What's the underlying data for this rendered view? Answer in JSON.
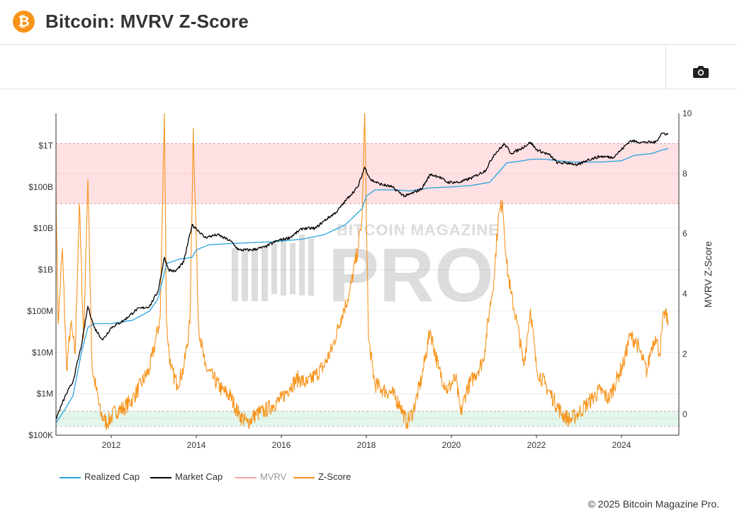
{
  "header": {
    "title": "Bitcoin: MVRV Z-Score",
    "logo_glyph": "₿",
    "logo_color": "#f7931a"
  },
  "toolbar": {
    "camera_icon": "camera-icon"
  },
  "watermark": {
    "top": "BITCOIN MAGAZINE",
    "main": "PRO"
  },
  "footer": {
    "copyright": "© 2025 Bitcoin Magazine Pro."
  },
  "legend": [
    {
      "label": "Realized Cap",
      "color": "#29a3dd",
      "visible": true
    },
    {
      "label": "Market Cap",
      "color": "#000000",
      "visible": true
    },
    {
      "label": "MVRV",
      "color": "#f4a6a6",
      "visible": false
    },
    {
      "label": "Z-Score",
      "color": "#f7931a",
      "visible": true
    }
  ],
  "chart_data": {
    "type": "line",
    "title": "Bitcoin: MVRV Z-Score",
    "x_ticks": [
      "2012",
      "2014",
      "2016",
      "2018",
      "2020",
      "2022",
      "2024"
    ],
    "y_left": {
      "scale": "log",
      "range": [
        100000,
        6000000000000
      ],
      "tick_labels": [
        "$100K",
        "$1M",
        "$10M",
        "$100M",
        "$1B",
        "$10B",
        "$100B",
        "$1T"
      ],
      "tick_values": [
        100000.0,
        1000000.0,
        10000000.0,
        100000000.0,
        1000000000.0,
        10000000000.0,
        100000000000.0,
        1000000000000.0
      ]
    },
    "y_right": {
      "label": "MVRV Z-Score",
      "range": [
        -0.7,
        10
      ],
      "tick_labels": [
        "0",
        "2",
        "4",
        "6",
        "8",
        "10"
      ],
      "tick_values": [
        0,
        2,
        4,
        6,
        8,
        10
      ]
    },
    "bands": [
      {
        "name": "overvalued",
        "from": 7,
        "to": 9,
        "color": "#ffe0e3",
        "mid": 8
      },
      {
        "name": "undervalued",
        "from": -0.4,
        "to": 0.1,
        "color": "#e3f6ec",
        "mid": -0.15
      }
    ],
    "series": [
      {
        "name": "Market Cap",
        "color": "#000000",
        "axis": "left",
        "x": [
          2010.7,
          2010.9,
          2011.1,
          2011.3,
          2011.45,
          2011.6,
          2011.8,
          2012.0,
          2012.3,
          2012.6,
          2012.9,
          2013.1,
          2013.25,
          2013.35,
          2013.5,
          2013.7,
          2013.9,
          2014.0,
          2014.2,
          2014.5,
          2014.8,
          2015.0,
          2015.3,
          2015.6,
          2015.9,
          2016.2,
          2016.5,
          2016.8,
          2017.0,
          2017.3,
          2017.6,
          2017.8,
          2017.96,
          2018.1,
          2018.3,
          2018.6,
          2018.9,
          2019.0,
          2019.3,
          2019.5,
          2019.7,
          2019.9,
          2020.2,
          2020.5,
          2020.8,
          2021.0,
          2021.25,
          2021.4,
          2021.6,
          2021.86,
          2022.0,
          2022.3,
          2022.5,
          2022.8,
          2022.95,
          2023.2,
          2023.5,
          2023.8,
          2024.0,
          2024.2,
          2024.5,
          2024.8,
          2024.95,
          2025.1
        ],
        "values": [
          250000.0,
          800000.0,
          2000000.0,
          15000000.0,
          130000000.0,
          40000000.0,
          20000000.0,
          40000000.0,
          60000000.0,
          110000000.0,
          130000000.0,
          300000000.0,
          2000000000.0,
          1000000000.0,
          900000000.0,
          1500000000.0,
          12000000000.0,
          10000000000.0,
          6000000000.0,
          7000000000.0,
          5000000000.0,
          3000000000.0,
          3000000000.0,
          3500000000.0,
          5000000000.0,
          6000000000.0,
          10000000000.0,
          10000000000.0,
          15000000000.0,
          25000000000.0,
          60000000000.0,
          100000000000.0,
          300000000000.0,
          150000000000.0,
          120000000000.0,
          100000000000.0,
          60000000000.0,
          65000000000.0,
          90000000000.0,
          200000000000.0,
          180000000000.0,
          130000000000.0,
          130000000000.0,
          170000000000.0,
          250000000000.0,
          600000000000.0,
          1100000000000.0,
          650000000000.0,
          800000000000.0,
          1200000000000.0,
          800000000000.0,
          600000000000.0,
          380000000000.0,
          380000000000.0,
          330000000000.0,
          450000000000.0,
          550000000000.0,
          520000000000.0,
          800000000000.0,
          1300000000000.0,
          1200000000000.0,
          1200000000000.0,
          2000000000000.0,
          1900000000000.0
        ]
      },
      {
        "name": "Realized Cap",
        "color": "#29a3dd",
        "axis": "left",
        "x": [
          2010.7,
          2010.9,
          2011.1,
          2011.3,
          2011.45,
          2011.6,
          2011.8,
          2012.0,
          2012.5,
          2012.9,
          2013.1,
          2013.3,
          2013.6,
          2013.9,
          2014.0,
          2014.3,
          2014.8,
          2015.3,
          2015.9,
          2016.5,
          2017.0,
          2017.5,
          2017.9,
          2018.0,
          2018.2,
          2018.7,
          2019.0,
          2019.5,
          2020.0,
          2020.5,
          2020.9,
          2021.1,
          2021.3,
          2021.6,
          2021.9,
          2022.2,
          2022.5,
          2022.9,
          2023.5,
          2024.0,
          2024.3,
          2024.7,
          2024.95,
          2025.1
        ],
        "values": [
          200000.0,
          400000.0,
          900000.0,
          10000000.0,
          40000000.0,
          50000000.0,
          50000000.0,
          50000000.0,
          60000000.0,
          100000000.0,
          200000000.0,
          1400000000.0,
          1800000000.0,
          2000000000.0,
          3000000000.0,
          4000000000.0,
          4300000000.0,
          4500000000.0,
          4800000000.0,
          5500000000.0,
          7000000000.0,
          12000000000.0,
          30000000000.0,
          60000000000.0,
          85000000000.0,
          85000000000.0,
          80000000000.0,
          95000000000.0,
          100000000000.0,
          110000000000.0,
          130000000000.0,
          220000000000.0,
          380000000000.0,
          420000000000.0,
          470000000000.0,
          470000000000.0,
          430000000000.0,
          400000000000.0,
          400000000000.0,
          430000000000.0,
          580000000000.0,
          640000000000.0,
          780000000000.0,
          850000000000.0
        ]
      },
      {
        "name": "Z-Score",
        "color": "#f7931a",
        "axis": "right",
        "x": [
          2010.7,
          2010.75,
          2010.85,
          2010.95,
          2011.05,
          2011.15,
          2011.25,
          2011.35,
          2011.45,
          2011.55,
          2011.65,
          2011.75,
          2011.9,
          2012.1,
          2012.3,
          2012.5,
          2012.7,
          2012.9,
          2013.05,
          2013.15,
          2013.25,
          2013.3,
          2013.4,
          2013.55,
          2013.7,
          2013.85,
          2013.93,
          2014.05,
          2014.2,
          2014.4,
          2014.6,
          2014.8,
          2015.0,
          2015.2,
          2015.4,
          2015.6,
          2015.8,
          2016.0,
          2016.2,
          2016.4,
          2016.6,
          2016.8,
          2017.0,
          2017.2,
          2017.4,
          2017.6,
          2017.8,
          2017.9,
          2017.96,
          2018.05,
          2018.2,
          2018.4,
          2018.6,
          2018.8,
          2018.95,
          2019.1,
          2019.3,
          2019.5,
          2019.7,
          2019.9,
          2020.1,
          2020.22,
          2020.35,
          2020.55,
          2020.75,
          2020.9,
          2021.0,
          2021.1,
          2021.2,
          2021.3,
          2021.4,
          2021.55,
          2021.7,
          2021.86,
          2022.0,
          2022.2,
          2022.4,
          2022.6,
          2022.8,
          2022.95,
          2023.1,
          2023.3,
          2023.5,
          2023.7,
          2023.9,
          2024.05,
          2024.2,
          2024.35,
          2024.5,
          2024.6,
          2024.7,
          2024.8,
          2024.9,
          2025.0,
          2025.1
        ],
        "values": [
          7.5,
          3,
          5.5,
          1.5,
          3,
          2,
          7,
          2.5,
          7.8,
          1.5,
          0.8,
          0,
          -0.3,
          0.1,
          0.2,
          0.5,
          1,
          1.5,
          2.5,
          3.2,
          10,
          3,
          1.5,
          1,
          1.5,
          3,
          9.5,
          3,
          1.6,
          1.2,
          0.8,
          0.6,
          0,
          -0.3,
          0,
          0.1,
          0.3,
          0.5,
          0.9,
          1.2,
          1.0,
          1.3,
          1.6,
          2.2,
          3.2,
          4.0,
          5.5,
          6.5,
          10,
          2.5,
          1.0,
          0.8,
          0.7,
          0.3,
          -0.3,
          0.1,
          1.2,
          2.8,
          1.5,
          0.8,
          1.2,
          0,
          0.8,
          1.3,
          1.8,
          3.5,
          4.5,
          6.5,
          7.1,
          5,
          4,
          3,
          1.6,
          3.5,
          1.5,
          1.0,
          0.5,
          0,
          -0.2,
          0,
          0.2,
          0.5,
          0.8,
          0.5,
          1.2,
          1.7,
          2.6,
          2.4,
          1.8,
          1.4,
          2.2,
          2.6,
          2.0,
          3.4,
          3.1
        ]
      }
    ]
  }
}
